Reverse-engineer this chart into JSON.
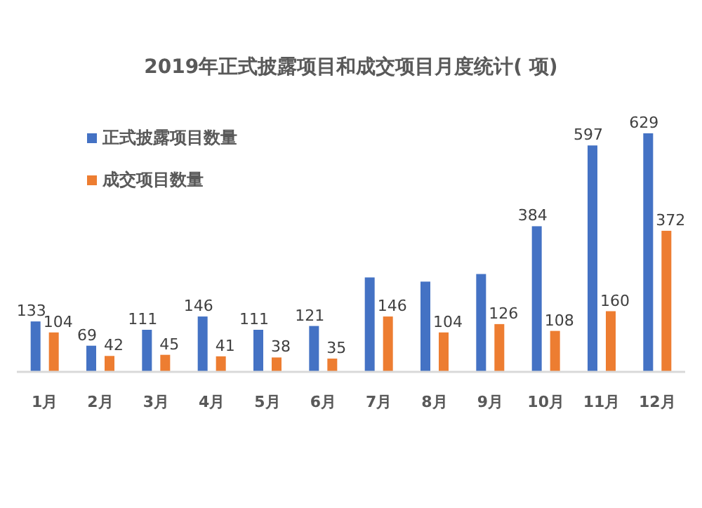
{
  "chart_data": {
    "type": "bar",
    "title": "2019年正式披露项目和成交项目月度统计( 项)",
    "categories": [
      "1月",
      "2月",
      "3月",
      "4月",
      "5月",
      "6月",
      "7月",
      "8月",
      "9月",
      "10月",
      "11月",
      "12月"
    ],
    "series": [
      {
        "name": "正式披露项目数量",
        "color": "#4472c4",
        "values": [
          133,
          69,
          111,
          146,
          111,
          121,
          249,
          238,
          258,
          384,
          597,
          629
        ],
        "value_labels": [
          "133",
          "69",
          "111",
          "146",
          "111",
          "121",
          null,
          null,
          null,
          "384",
          "597",
          "629"
        ]
      },
      {
        "name": "成交项目数量",
        "color": "#ed7d31",
        "values": [
          104,
          42,
          45,
          41,
          38,
          35,
          146,
          104,
          126,
          108,
          160,
          372
        ],
        "value_labels": [
          "104",
          "42",
          "45",
          "41",
          "38",
          "35",
          "146",
          "104",
          "126",
          "108",
          "160",
          "372"
        ]
      }
    ],
    "legend": "top left"
  }
}
